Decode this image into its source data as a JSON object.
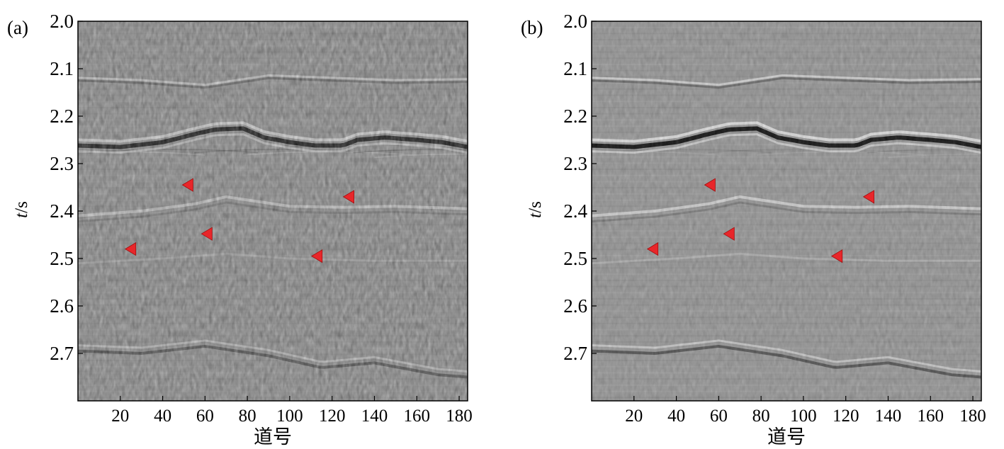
{
  "figure": {
    "panels": [
      {
        "label": "(a)",
        "y_axis": {
          "label_italic": "t",
          "label_unit": "/s",
          "ticks": [
            "2.0",
            "2.1",
            "2.2",
            "2.3",
            "2.4",
            "2.5",
            "2.6",
            "2.7"
          ],
          "range": [
            2.0,
            2.8
          ],
          "inverted": true
        },
        "x_axis": {
          "label": "道号",
          "ticks": [
            "20",
            "40",
            "60",
            "80",
            "100",
            "120",
            "140",
            "160",
            "180"
          ],
          "range": [
            0,
            184
          ]
        },
        "markers": [
          {
            "trace": 52,
            "time": 2.345
          },
          {
            "trace": 128,
            "time": 2.37
          },
          {
            "trace": 61,
            "time": 2.448
          },
          {
            "trace": 25,
            "time": 2.48
          },
          {
            "trace": 113,
            "time": 2.495
          }
        ],
        "noise_level": "strong"
      },
      {
        "label": "(b)",
        "y_axis": {
          "label_italic": "t",
          "label_unit": "/s",
          "ticks": [
            "2.0",
            "2.1",
            "2.2",
            "2.3",
            "2.4",
            "2.5",
            "2.6",
            "2.7"
          ],
          "range": [
            2.0,
            2.8
          ],
          "inverted": true
        },
        "x_axis": {
          "label": "道号",
          "ticks": [
            "20",
            "40",
            "60",
            "80",
            "100",
            "120",
            "140",
            "160",
            "180"
          ],
          "range": [
            0,
            184
          ]
        },
        "markers": [
          {
            "trace": 56,
            "time": 2.345
          },
          {
            "trace": 131,
            "time": 2.37
          },
          {
            "trace": 65,
            "time": 2.448
          },
          {
            "trace": 29,
            "time": 2.48
          },
          {
            "trace": 116,
            "time": 2.495
          }
        ],
        "noise_level": "weak"
      }
    ],
    "colors": {
      "marker": "#e8262a",
      "background_gray": "#9c9c9c",
      "frame": "#000000"
    }
  }
}
